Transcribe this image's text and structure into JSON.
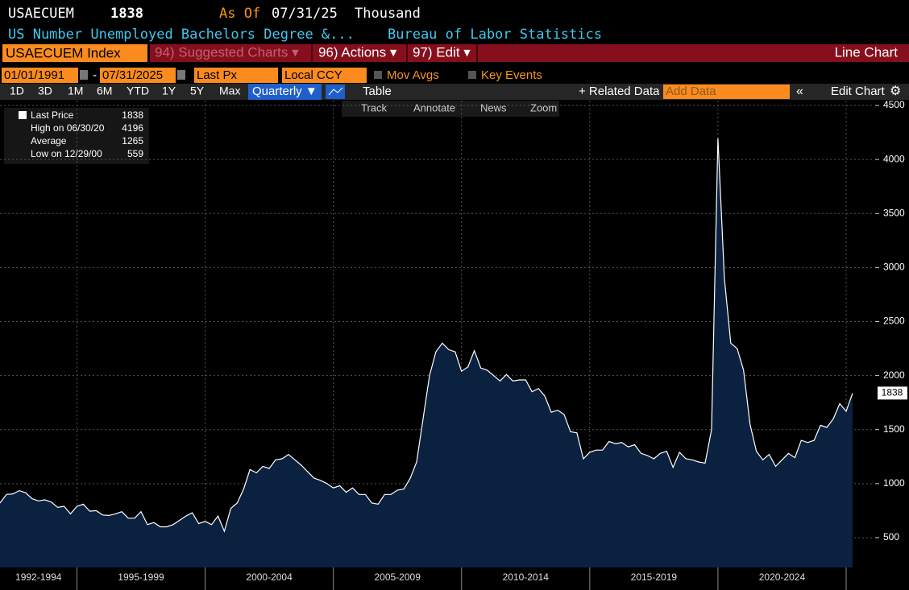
{
  "ui": {
    "ticker": "USAECUEM",
    "last": 1838,
    "as_of_label": "As Of",
    "as_of_date": "07/31/25",
    "units": "Thousand",
    "description": "US Number Unemployed Bachelors Degree &...",
    "source": "Bureau of Labor Statistics",
    "security": "USAECUEM Index",
    "menus": [
      "94) Suggested Charts ▾",
      "96) Actions ▾",
      "97) Edit ▾"
    ],
    "chart_kind": "Line Chart",
    "start_date": "01/01/1991",
    "date_sep": "-",
    "end_date": "07/31/2025",
    "field": "Last Px",
    "currency": "Local CCY",
    "toggles": [
      "Mov Avgs",
      "Key Events"
    ],
    "ranges": [
      "1D",
      "3D",
      "1M",
      "6M",
      "YTD",
      "1Y",
      "5Y",
      "Max"
    ],
    "frequency": "Quarterly ▼",
    "table": "Table",
    "related": "+ Related Data",
    "add_data": "Add Data",
    "edit_chart": "Edit Chart",
    "tools": [
      "Track",
      "Annotate",
      "News",
      "Zoom"
    ]
  },
  "legend_stats": [
    {
      "label": "Last Price",
      "value": 1838
    },
    {
      "label": "High on 06/30/20",
      "value": 4196
    },
    {
      "label": "Average",
      "value": 1265
    },
    {
      "label": "Low on 12/29/00",
      "value": 559
    }
  ],
  "chart_data": {
    "type": "line",
    "color": "#ffffff",
    "fill_color": "#0b2140",
    "grid": true,
    "ylim": [
      224,
      4545
    ],
    "yticks": [
      500,
      1000,
      1500,
      2000,
      2500,
      3000,
      3500,
      4000,
      4500
    ],
    "xlim": [
      1992,
      2026.1
    ],
    "xticks": [
      {
        "value": 1992,
        "label": "1992-1994"
      },
      {
        "value": 1995,
        "label": "1995-1999"
      },
      {
        "value": 2000,
        "label": "2000-2004"
      },
      {
        "value": 2005,
        "label": "2005-2009"
      },
      {
        "value": 2010,
        "label": "2010-2014"
      },
      {
        "value": 2015,
        "label": "2015-2019"
      },
      {
        "value": 2020,
        "label": "2020-2024"
      },
      {
        "value": 2025,
        "label": null
      }
    ],
    "x": [
      1992,
      1992.25,
      1992.5,
      1992.75,
      1993,
      1993.25,
      1993.5,
      1993.75,
      1994,
      1994.25,
      1994.5,
      1994.75,
      1995,
      1995.25,
      1995.5,
      1995.75,
      1996,
      1996.25,
      1996.5,
      1996.75,
      1997,
      1997.25,
      1997.5,
      1997.75,
      1998,
      1998.25,
      1998.5,
      1998.75,
      1999,
      1999.25,
      1999.5,
      1999.75,
      2000,
      2000.25,
      2000.5,
      2000.75,
      2001,
      2001.25,
      2001.5,
      2001.75,
      2002,
      2002.25,
      2002.5,
      2002.75,
      2003,
      2003.25,
      2003.5,
      2003.75,
      2004,
      2004.25,
      2004.5,
      2004.75,
      2005,
      2005.25,
      2005.5,
      2005.75,
      2006,
      2006.25,
      2006.5,
      2006.75,
      2007,
      2007.25,
      2007.5,
      2007.75,
      2008,
      2008.25,
      2008.5,
      2008.75,
      2009,
      2009.25,
      2009.5,
      2009.75,
      2010,
      2010.25,
      2010.5,
      2010.75,
      2011,
      2011.25,
      2011.5,
      2011.75,
      2012,
      2012.25,
      2012.5,
      2012.75,
      2013,
      2013.25,
      2013.5,
      2013.75,
      2014,
      2014.25,
      2014.5,
      2014.75,
      2015,
      2015.25,
      2015.5,
      2015.75,
      2016,
      2016.25,
      2016.5,
      2016.75,
      2017,
      2017.25,
      2017.5,
      2017.75,
      2018,
      2018.25,
      2018.5,
      2018.75,
      2019,
      2019.25,
      2019.5,
      2019.75,
      2020,
      2020.25,
      2020.5,
      2020.75,
      2021,
      2021.25,
      2021.5,
      2021.75,
      2022,
      2022.25,
      2022.5,
      2022.75,
      2023,
      2023.25,
      2023.5,
      2023.75,
      2024,
      2024.25,
      2024.5,
      2024.75,
      2025,
      2025.25
    ],
    "values": [
      820,
      900,
      905,
      935,
      915,
      860,
      840,
      850,
      830,
      780,
      790,
      720,
      790,
      810,
      745,
      750,
      710,
      705,
      720,
      740,
      680,
      680,
      740,
      620,
      640,
      600,
      600,
      620,
      660,
      700,
      730,
      630,
      650,
      620,
      700,
      559,
      770,
      820,
      950,
      1130,
      1100,
      1160,
      1140,
      1220,
      1230,
      1270,
      1220,
      1170,
      1110,
      1050,
      1030,
      1000,
      960,
      980,
      920,
      960,
      900,
      900,
      820,
      810,
      900,
      900,
      940,
      950,
      1050,
      1200,
      1600,
      2000,
      2220,
      2300,
      2240,
      2220,
      2040,
      2080,
      2230,
      2070,
      2050,
      2000,
      1950,
      2010,
      1950,
      1960,
      1960,
      1850,
      1880,
      1810,
      1660,
      1680,
      1640,
      1480,
      1470,
      1230,
      1290,
      1310,
      1310,
      1390,
      1370,
      1380,
      1340,
      1360,
      1280,
      1260,
      1230,
      1280,
      1300,
      1150,
      1290,
      1230,
      1220,
      1200,
      1190,
      1500,
      4196,
      2900,
      2300,
      2250,
      2050,
      1550,
      1300,
      1220,
      1270,
      1160,
      1220,
      1280,
      1240,
      1400,
      1380,
      1400,
      1540,
      1520,
      1600,
      1740,
      1670,
      1838
    ]
  }
}
